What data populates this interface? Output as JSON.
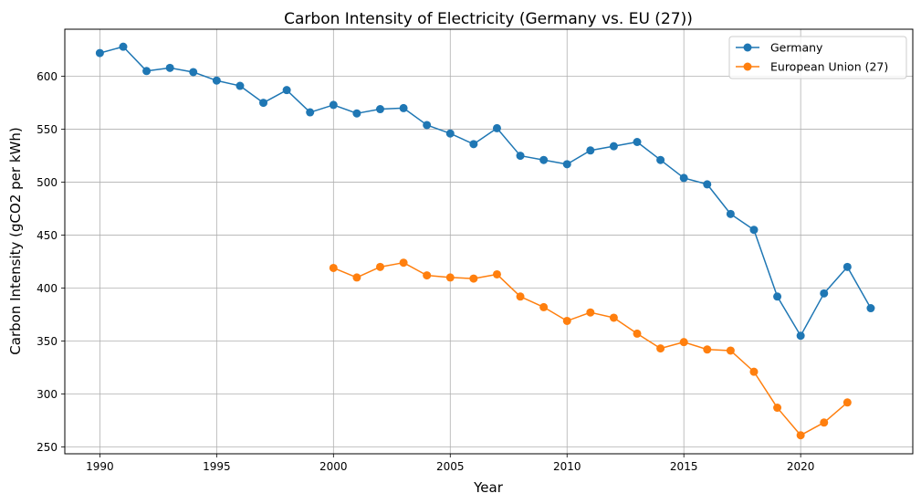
{
  "chart_data": {
    "type": "line",
    "title": "Carbon Intensity of Electricity (Germany vs. EU (27))",
    "xlabel": "Year",
    "ylabel": "Carbon Intensity (gCO2 per kWh)",
    "xlim": [
      1988.5,
      2024.8
    ],
    "ylim": [
      243.5,
      644.5
    ],
    "xticks": [
      1990,
      1995,
      2000,
      2005,
      2010,
      2015,
      2020
    ],
    "yticks": [
      250,
      300,
      350,
      400,
      450,
      500,
      550,
      600
    ],
    "grid": true,
    "legend_position": "top-right",
    "series": [
      {
        "name": "Germany",
        "color": "#1f77b4",
        "x": [
          1990,
          1991,
          1992,
          1993,
          1994,
          1995,
          1996,
          1997,
          1998,
          1999,
          2000,
          2001,
          2002,
          2003,
          2004,
          2005,
          2006,
          2007,
          2008,
          2009,
          2010,
          2011,
          2012,
          2013,
          2014,
          2015,
          2016,
          2017,
          2018,
          2019,
          2020,
          2021,
          2022,
          2023
        ],
        "y": [
          622,
          628,
          605,
          608,
          604,
          596,
          591,
          575,
          587,
          566,
          573,
          565,
          569,
          570,
          554,
          546,
          536,
          551,
          525,
          521,
          517,
          530,
          534,
          538,
          521,
          504,
          498,
          470,
          455,
          392,
          355,
          395,
          420,
          381
        ]
      },
      {
        "name": "European Union (27)",
        "color": "#ff7f0e",
        "x": [
          2000,
          2001,
          2002,
          2003,
          2004,
          2005,
          2006,
          2007,
          2008,
          2009,
          2010,
          2011,
          2012,
          2013,
          2014,
          2015,
          2016,
          2017,
          2018,
          2019,
          2020,
          2021,
          2022
        ],
        "y": [
          419,
          410,
          420,
          424,
          412,
          410,
          409,
          413,
          392,
          382,
          369,
          377,
          372,
          357,
          343,
          349,
          342,
          341,
          321,
          287,
          261,
          273,
          292
        ]
      }
    ]
  }
}
